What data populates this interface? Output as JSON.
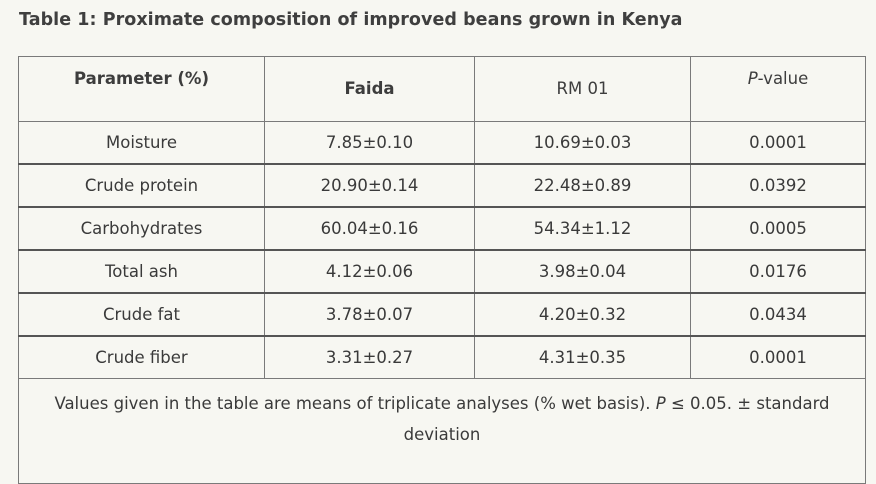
{
  "caption": "Table 1: Proximate composition of improved beans grown in Kenya",
  "columns": {
    "parameter": "Parameter (%)",
    "faida": "Faida",
    "rm01": "RM 01",
    "pvalue_italic": "P",
    "pvalue_rest": "-value"
  },
  "rows": [
    {
      "parameter": "Moisture",
      "faida": "7.85±0.10",
      "rm01": "10.69±0.03",
      "pvalue": "0.0001"
    },
    {
      "parameter": "Crude protein",
      "faida": "20.90±0.14",
      "rm01": "22.48±0.89",
      "pvalue": "0.0392"
    },
    {
      "parameter": "Carbohydrates",
      "faida": "60.04±0.16",
      "rm01": "54.34±1.12",
      "pvalue": "0.0005"
    },
    {
      "parameter": "Total ash",
      "faida": "4.12±0.06",
      "rm01": "3.98±0.04",
      "pvalue": "0.0176"
    },
    {
      "parameter": "Crude fat",
      "faida": "3.78±0.07",
      "rm01": "4.20±0.32",
      "pvalue": "0.0434"
    },
    {
      "parameter": "Crude fiber",
      "faida": "3.31±0.27",
      "rm01": "4.31±0.35",
      "pvalue": "0.0001"
    }
  ],
  "note": {
    "prefix": "Values given in the table are means of triplicate analyses (% wet basis). ",
    "p_italic": "P",
    "suffix": " ≤ 0.05.  ± standard deviation"
  }
}
